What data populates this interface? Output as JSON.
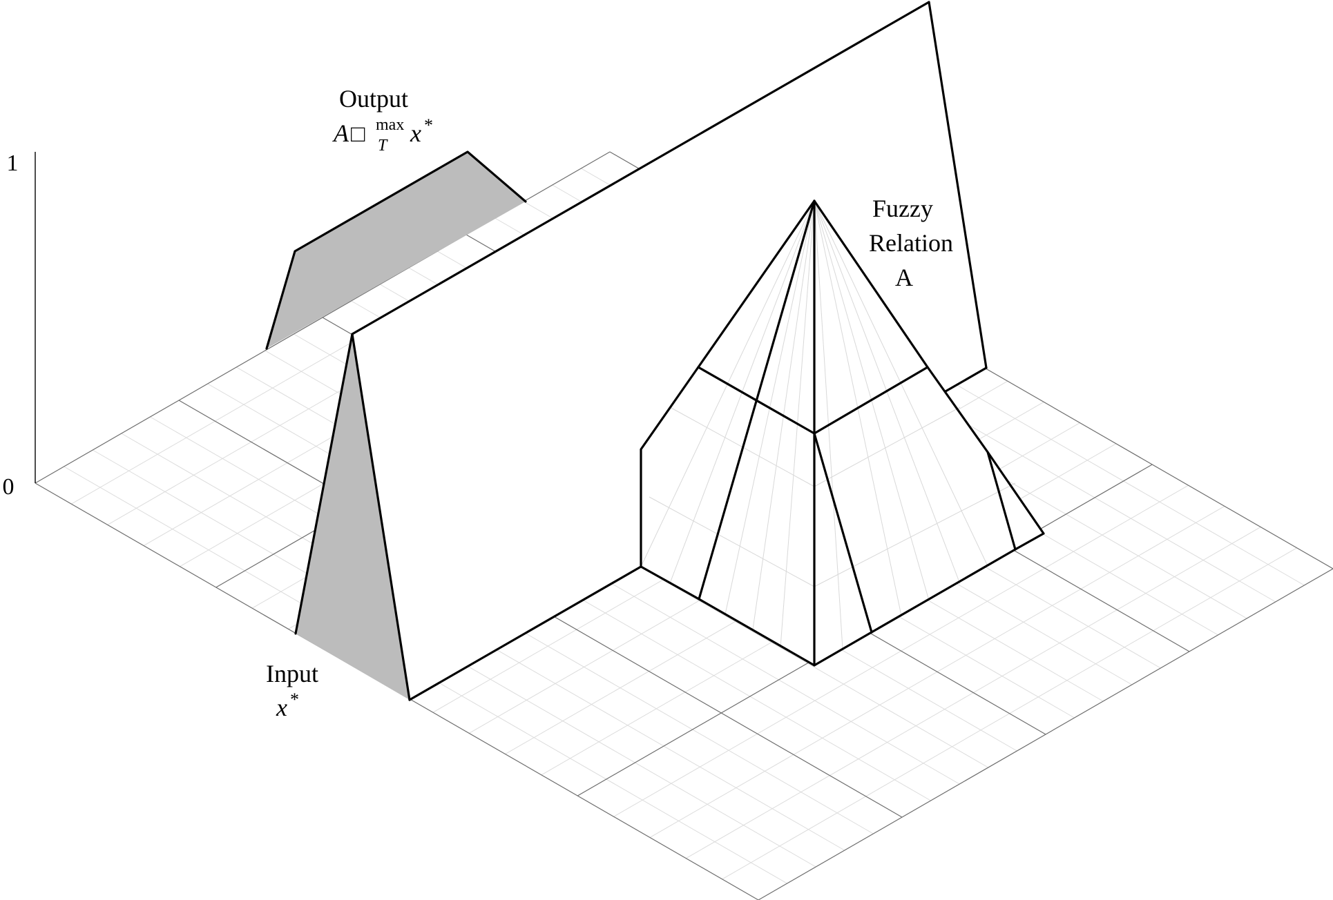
{
  "diagram": {
    "axis": {
      "tick_top": "1",
      "tick_bottom": "0"
    },
    "output": {
      "title": "Output",
      "formula_base": "A",
      "formula_op": "□",
      "formula_sup": "max",
      "formula_sub": "T",
      "formula_var": "x",
      "formula_star": "*"
    },
    "input": {
      "title": "Input",
      "var": "x",
      "star": "*"
    },
    "relation": {
      "line1": "Fuzzy",
      "line2": "Relation",
      "line3": "A"
    },
    "colors": {
      "shaded": "#bcbcbc",
      "ink": "#000000",
      "grid_major": "#6e6e6e",
      "grid_fine": "#dcdcdc"
    }
  }
}
